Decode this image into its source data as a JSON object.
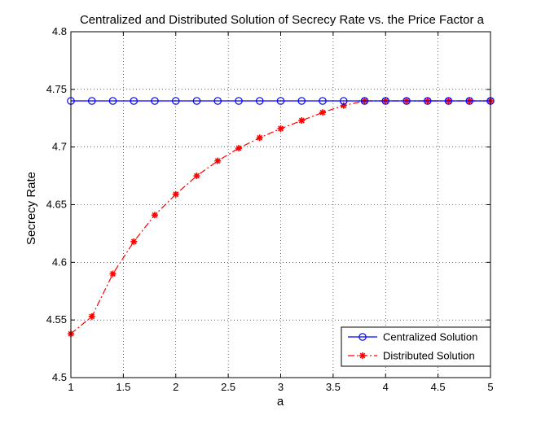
{
  "chart_data": {
    "type": "line",
    "title": "Centralized and Distributed Solution of Secrecy Rate vs. the Price Factor a",
    "xlabel": "a",
    "ylabel": "Secrecy Rate",
    "xlim": [
      1,
      5
    ],
    "ylim": [
      4.5,
      4.8
    ],
    "xticks": [
      1,
      1.5,
      2,
      2.5,
      3,
      3.5,
      4,
      4.5,
      5
    ],
    "xtick_labels": [
      "1",
      "1.5",
      "2",
      "2.5",
      "3",
      "3.5",
      "4",
      "4.5",
      "5"
    ],
    "yticks": [
      4.5,
      4.55,
      4.6,
      4.65,
      4.7,
      4.75,
      4.8
    ],
    "ytick_labels": [
      "4.5",
      "4.55",
      "4.6",
      "4.65",
      "4.7",
      "4.75",
      "4.8"
    ],
    "grid": true,
    "legend_position": "bottom-right",
    "x": [
      1.0,
      1.2,
      1.4,
      1.6,
      1.8,
      2.0,
      2.2,
      2.4,
      2.6,
      2.8,
      3.0,
      3.2,
      3.4,
      3.6,
      3.8,
      4.0,
      4.2,
      4.4,
      4.6,
      4.8,
      5.0
    ],
    "series": [
      {
        "name": "Centralized Solution",
        "color": "#0000ff",
        "line_style": "solid",
        "marker": "circle",
        "values": [
          4.74,
          4.74,
          4.74,
          4.74,
          4.74,
          4.74,
          4.74,
          4.74,
          4.74,
          4.74,
          4.74,
          4.74,
          4.74,
          4.74,
          4.74,
          4.74,
          4.74,
          4.74,
          4.74,
          4.74,
          4.74
        ]
      },
      {
        "name": "Distributed Solution",
        "color": "#ff0000",
        "line_style": "dash-dot",
        "marker": "star",
        "values": [
          4.538,
          4.553,
          4.59,
          4.618,
          4.641,
          4.659,
          4.675,
          4.688,
          4.699,
          4.708,
          4.716,
          4.723,
          4.73,
          4.736,
          4.74,
          4.74,
          4.74,
          4.74,
          4.74,
          4.74,
          4.74
        ]
      }
    ]
  }
}
